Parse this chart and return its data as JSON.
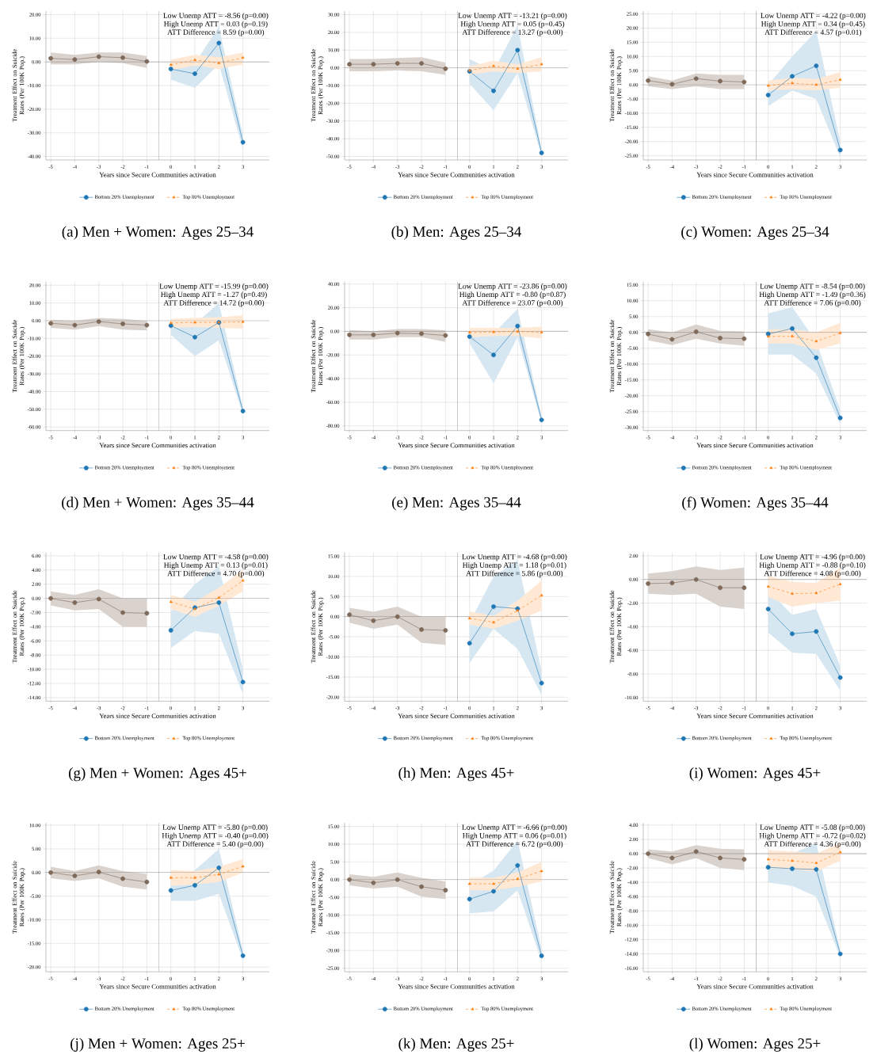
{
  "chart_data": [
    {
      "type": "line",
      "title": "(a) Men + Women: Ages 25–34",
      "xlabel": "Years since Secure Communities activation",
      "ylabel": "Treatment Effect on Suicide Rates (Per 100K Pop.)",
      "grid": true,
      "legend": "bottom",
      "xlim": [
        -5.2,
        4.1
      ],
      "xticks": [
        -5,
        -4,
        -3,
        -2,
        -1,
        0,
        1,
        2,
        3
      ],
      "ylim": [
        -41.5,
        21.5
      ],
      "yticks": [
        {
          "value": -40,
          "label": "-40.00"
        },
        {
          "value": -30,
          "label": "-30.00"
        },
        {
          "value": -20,
          "label": "-20.00"
        },
        {
          "value": -10,
          "label": "-10.00"
        },
        {
          "value": 0,
          "label": "0.00"
        },
        {
          "value": 10,
          "label": "10.00"
        },
        {
          "value": 20,
          "label": "20.00"
        }
      ],
      "annotations": [
        "Low Unemp ATT = -8.56 (p=0.00)",
        "High Unemp ATT = 0.03 (p=0.19)",
        "ATT Difference = 8.59 (p=0.00)"
      ],
      "ref_lines": [
        {
          "axis": "x",
          "value": -0.5
        },
        {
          "axis": "y",
          "value": 0
        }
      ],
      "series": [
        {
          "color": "#7f6a5a",
          "marker": "circle",
          "line_style": "solid",
          "x": [
            -5,
            -4,
            -3,
            -2,
            -1
          ],
          "values": [
            1.5,
            1.0,
            2.2,
            1.8,
            0.2
          ],
          "lower": [
            -1,
            -1,
            0,
            -0.5,
            -2.5
          ],
          "upper": [
            4,
            3,
            4,
            4,
            2.5
          ]
        },
        {
          "name": "Bottom 20% Unemployment",
          "color": "#1f77b4",
          "marker": "circle",
          "line_style": "solid",
          "x": [
            0,
            1,
            2,
            3
          ],
          "values": [
            -3,
            -5,
            8,
            -34
          ],
          "lower": [
            -7.5,
            -11,
            -1,
            -37
          ],
          "upper": [
            1,
            -0.5,
            15,
            -31
          ]
        },
        {
          "name": "Top 80% Unemployment",
          "color": "#ff7f0e",
          "marker": "triangle",
          "line_style": "dashed",
          "x": [
            0,
            1,
            2,
            3
          ],
          "values": [
            -1.2,
            0.8,
            -0.5,
            1.8
          ],
          "lower": [
            -3.5,
            -1.5,
            -3,
            -1
          ],
          "upper": [
            1,
            3,
            2,
            4
          ]
        }
      ]
    },
    {
      "type": "line",
      "title": "(b) Men: Ages 25–34",
      "xlabel": "Years since Secure Communities activation",
      "ylabel": "Treatment Effect on Suicide Rates (Per 100K Pop.)",
      "grid": true,
      "legend": "bottom",
      "xlim": [
        -5.2,
        4.1
      ],
      "xticks": [
        -5,
        -4,
        -3,
        -2,
        -1,
        0,
        1,
        2,
        3
      ],
      "ylim": [
        -52,
        32
      ],
      "yticks": [
        {
          "value": -50,
          "label": "-50.00"
        },
        {
          "value": -40,
          "label": "-40.00"
        },
        {
          "value": -30,
          "label": "-30.00"
        },
        {
          "value": -20,
          "label": "-20.00"
        },
        {
          "value": -10,
          "label": "-10.00"
        },
        {
          "value": 0,
          "label": "0.00"
        },
        {
          "value": 10,
          "label": "10.00"
        },
        {
          "value": 20,
          "label": "20.00"
        },
        {
          "value": 30,
          "label": "30.00"
        }
      ],
      "annotations": [
        "Low Unemp ATT = -13.21 (p=0.00)",
        "High Unemp ATT = 0.05 (p=0.45)",
        "ATT Difference = 13.27 (p=0.00)"
      ],
      "ref_lines": [
        {
          "axis": "x",
          "value": -0.5
        },
        {
          "axis": "y",
          "value": 0
        }
      ],
      "series": [
        {
          "color": "#7f6a5a",
          "marker": "circle",
          "line_style": "solid",
          "x": [
            -5,
            -4,
            -3,
            -2,
            -1
          ],
          "values": [
            2,
            2,
            2.5,
            2.5,
            -0.5
          ],
          "lower": [
            -2,
            -2,
            -1.5,
            -2,
            -4
          ],
          "upper": [
            5,
            5,
            5.5,
            6,
            3
          ]
        },
        {
          "name": "Bottom 20% Unemployment",
          "color": "#1f77b4",
          "marker": "circle",
          "line_style": "solid",
          "x": [
            0,
            1,
            2,
            3
          ],
          "values": [
            -2,
            -13,
            10,
            -48
          ],
          "lower": [
            -9,
            -24,
            -3,
            -50
          ],
          "upper": [
            5,
            -2,
            24,
            -46
          ]
        },
        {
          "name": "Top 80% Unemployment",
          "color": "#ff7f0e",
          "marker": "triangle",
          "line_style": "dashed",
          "x": [
            0,
            1,
            2,
            3
          ],
          "values": [
            -1.5,
            1,
            -0.5,
            2
          ],
          "lower": [
            -4,
            -2,
            -3,
            -2
          ],
          "upper": [
            1,
            4,
            2,
            6
          ]
        }
      ]
    },
    {
      "type": "line",
      "title": "(c) Women: Ages 25–34",
      "xlabel": "Years since Secure Communities activation",
      "ylabel": "Treatment Effect on Suicide Rates (Per 100K Pop.)",
      "grid": true,
      "legend": "bottom",
      "xlim": [
        -5.2,
        4.1
      ],
      "xticks": [
        -5,
        -4,
        -3,
        -2,
        -1,
        0,
        1,
        2,
        3
      ],
      "ylim": [
        -26.5,
        26
      ],
      "yticks": [
        {
          "value": -25,
          "label": "-25.00"
        },
        {
          "value": -20,
          "label": "-20.00"
        },
        {
          "value": -15,
          "label": "-15.00"
        },
        {
          "value": -10,
          "label": "-10.00"
        },
        {
          "value": -5,
          "label": "-5.00"
        },
        {
          "value": 0,
          "label": "0.00"
        },
        {
          "value": 5,
          "label": "5.00"
        },
        {
          "value": 10,
          "label": "10.00"
        },
        {
          "value": 15,
          "label": "15.00"
        },
        {
          "value": 20,
          "label": "20.00"
        },
        {
          "value": 25,
          "label": "25.00"
        }
      ],
      "annotations": [
        "Low Unemp ATT = -4.22 (p=0.00)",
        "High Unemp ATT = 0.34 (p=0.45)",
        "ATT Difference = 4.57 (p=0.01)"
      ],
      "ref_lines": [
        {
          "axis": "x",
          "value": -0.5
        },
        {
          "axis": "y",
          "value": 0
        }
      ],
      "series": [
        {
          "color": "#7f6a5a",
          "marker": "circle",
          "line_style": "solid",
          "x": [
            -5,
            -4,
            -3,
            -2,
            -1
          ],
          "values": [
            1.5,
            0.2,
            2.2,
            1.3,
            1
          ],
          "lower": [
            -0.5,
            -1.5,
            -0.5,
            -1.5,
            -1.5
          ],
          "upper": [
            3,
            1.5,
            4,
            3.5,
            3.5
          ]
        },
        {
          "name": "Bottom 20% Unemployment",
          "color": "#1f77b4",
          "marker": "circle",
          "line_style": "solid",
          "x": [
            0,
            1,
            2,
            3
          ],
          "values": [
            -3.6,
            3,
            6.7,
            -23
          ],
          "lower": [
            -7.5,
            -2,
            -5,
            -25.5
          ],
          "upper": [
            0,
            10,
            19,
            -20
          ]
        },
        {
          "name": "Top 80% Unemployment",
          "color": "#ff7f0e",
          "marker": "triangle",
          "line_style": "dashed",
          "x": [
            0,
            1,
            2,
            3
          ],
          "values": [
            -0.3,
            0.6,
            0,
            1.8
          ],
          "lower": [
            -2,
            -1.5,
            -2,
            -1
          ],
          "upper": [
            1.5,
            2.5,
            2,
            4.5
          ]
        }
      ]
    },
    {
      "type": "line",
      "title": "(d) Men + Women: Ages 35–44",
      "xlabel": "Years since Secure Communities activation",
      "ylabel": "Treatment Effect on Suicide Rates (Per 100K Pop.)",
      "grid": true,
      "legend": "bottom",
      "xlim": [
        -5.2,
        4.1
      ],
      "xticks": [
        -5,
        -4,
        -3,
        -2,
        -1,
        0,
        1,
        2,
        3
      ],
      "ylim": [
        -62,
        22
      ],
      "yticks": [
        {
          "value": -60,
          "label": "-60.00"
        },
        {
          "value": -50,
          "label": "-50.00"
        },
        {
          "value": -40,
          "label": "-40.00"
        },
        {
          "value": -30,
          "label": "-30.00"
        },
        {
          "value": -20,
          "label": "-20.00"
        },
        {
          "value": -10,
          "label": "-10.00"
        },
        {
          "value": 0,
          "label": "0.00"
        },
        {
          "value": 10,
          "label": "10.00"
        },
        {
          "value": 20,
          "label": "20.00"
        }
      ],
      "annotations": [
        "Low Unemp ATT = -15.99 (p=0.00)",
        "High Unemp ATT = -1.27 (p=0.49)",
        "ATT Difference = 14.72 (p=0.00)"
      ],
      "ref_lines": [
        {
          "axis": "x",
          "value": -0.5
        },
        {
          "axis": "y",
          "value": 0
        }
      ],
      "series": [
        {
          "color": "#7f6a5a",
          "marker": "circle",
          "line_style": "solid",
          "x": [
            -5,
            -4,
            -3,
            -2,
            -1
          ],
          "values": [
            -1.5,
            -2.5,
            -0.5,
            -1.8,
            -2.5
          ],
          "lower": [
            -4,
            -5,
            -3,
            -5,
            -5.5
          ],
          "upper": [
            0.5,
            0,
            1.5,
            1,
            0
          ]
        },
        {
          "name": "Bottom 20% Unemployment",
          "color": "#1f77b4",
          "marker": "circle",
          "line_style": "solid",
          "x": [
            0,
            1,
            2,
            3
          ],
          "values": [
            -2.8,
            -9.3,
            -1,
            -51
          ],
          "lower": [
            -8,
            -20,
            -11,
            -53
          ],
          "upper": [
            1,
            -2,
            10,
            -49
          ]
        },
        {
          "name": "Top 80% Unemployment",
          "color": "#ff7f0e",
          "marker": "triangle",
          "line_style": "dashed",
          "x": [
            0,
            1,
            2,
            3
          ],
          "values": [
            -1.3,
            -1,
            -1,
            -0.6
          ],
          "lower": [
            -4,
            -3.5,
            -4,
            -4.5
          ],
          "upper": [
            1,
            1.5,
            2,
            3
          ]
        }
      ]
    },
    {
      "type": "line",
      "title": "(e) Men: Ages 35–44",
      "xlabel": "Years since Secure Communities activation",
      "ylabel": "Treatment Effect on Suicide Rates (Per 100K Pop.)",
      "grid": true,
      "legend": "bottom",
      "xlim": [
        -5.2,
        4.1
      ],
      "xticks": [
        -5,
        -4,
        -3,
        -2,
        -1,
        0,
        1,
        2,
        3
      ],
      "ylim": [
        -84,
        42
      ],
      "yticks": [
        {
          "value": -80,
          "label": "-80.00"
        },
        {
          "value": -60,
          "label": "-60.00"
        },
        {
          "value": -40,
          "label": "-40.00"
        },
        {
          "value": -20,
          "label": "-20.00"
        },
        {
          "value": 0,
          "label": "0.00"
        },
        {
          "value": 20,
          "label": "20.00"
        },
        {
          "value": 40,
          "label": "40.00"
        }
      ],
      "annotations": [
        "Low Unemp ATT = -23.86 (p=0.00)",
        "High Unemp ATT = -0.80 (p=0.87)",
        "ATT Difference = 23.07 (p=0.00)"
      ],
      "ref_lines": [
        {
          "axis": "x",
          "value": -0.5
        },
        {
          "axis": "y",
          "value": 0
        }
      ],
      "series": [
        {
          "color": "#7f6a5a",
          "marker": "circle",
          "line_style": "solid",
          "x": [
            -5,
            -4,
            -3,
            -2,
            -1
          ],
          "values": [
            -3,
            -3,
            -1.5,
            -2,
            -3.5
          ],
          "lower": [
            -7,
            -7,
            -5,
            -5,
            -9
          ],
          "upper": [
            1,
            0,
            2,
            2,
            1
          ]
        },
        {
          "name": "Bottom 20% Unemployment",
          "color": "#1f77b4",
          "marker": "circle",
          "line_style": "solid",
          "x": [
            0,
            1,
            2,
            3
          ],
          "values": [
            -4.5,
            -20,
            4.5,
            -75
          ],
          "lower": [
            -10,
            -44,
            -5,
            -78
          ],
          "upper": [
            1,
            -2,
            19,
            -72
          ]
        },
        {
          "name": "Top 80% Unemployment",
          "color": "#ff7f0e",
          "marker": "triangle",
          "line_style": "dashed",
          "x": [
            0,
            1,
            2,
            3
          ],
          "values": [
            -1,
            -0.6,
            -0.2,
            -0.8
          ],
          "lower": [
            -5,
            -4,
            -4,
            -6
          ],
          "upper": [
            3,
            3,
            3,
            4
          ]
        }
      ]
    },
    {
      "type": "line",
      "title": "(f) Women: Ages 35–44",
      "xlabel": "Years since Secure Communities activation",
      "ylabel": "Treatment Effect on Suicide Rates (Per 100K Pop.)",
      "grid": true,
      "legend": "bottom",
      "xlim": [
        -5.2,
        4.1
      ],
      "xticks": [
        -5,
        -4,
        -3,
        -2,
        -1,
        0,
        1,
        2,
        3
      ],
      "ylim": [
        -31,
        16
      ],
      "yticks": [
        {
          "value": -30,
          "label": "-30.00"
        },
        {
          "value": -25,
          "label": "-25.00"
        },
        {
          "value": -20,
          "label": "-20.00"
        },
        {
          "value": -15,
          "label": "-15.00"
        },
        {
          "value": -10,
          "label": "-10.00"
        },
        {
          "value": -5,
          "label": "-5.00"
        },
        {
          "value": 0,
          "label": "0.00"
        },
        {
          "value": 5,
          "label": "5.00"
        },
        {
          "value": 10,
          "label": "10.00"
        },
        {
          "value": 15,
          "label": "15.00"
        }
      ],
      "annotations": [
        "Low Unemp ATT = -8.54 (p=0.00)",
        "High Unemp ATT = -1.49 (p=0.36)",
        "ATT Difference = 7.06 (p=0.00)"
      ],
      "ref_lines": [
        {
          "axis": "x",
          "value": -0.5
        },
        {
          "axis": "y",
          "value": 0
        }
      ],
      "series": [
        {
          "color": "#7f6a5a",
          "marker": "circle",
          "line_style": "solid",
          "x": [
            -5,
            -4,
            -3,
            -2,
            -1
          ],
          "values": [
            -0.5,
            -2.2,
            0.2,
            -1.8,
            -2
          ],
          "lower": [
            -2.5,
            -4,
            -2,
            -3.5,
            -4.2
          ],
          "upper": [
            1,
            0,
            2.5,
            0.5,
            0.3
          ]
        },
        {
          "name": "Bottom 20% Unemployment",
          "color": "#1f77b4",
          "marker": "circle",
          "line_style": "solid",
          "x": [
            0,
            1,
            2,
            3
          ],
          "values": [
            -0.5,
            1.2,
            -8,
            -27
          ],
          "lower": [
            -7,
            -7,
            -13,
            -29
          ],
          "upper": [
            6,
            8,
            -3,
            -24.5
          ]
        },
        {
          "name": "Top 80% Unemployment",
          "color": "#ff7f0e",
          "marker": "triangle",
          "line_style": "dashed",
          "x": [
            0,
            1,
            2,
            3
          ],
          "values": [
            -1.3,
            -1.2,
            -2.8,
            -0.2
          ],
          "lower": [
            -3.5,
            -3.5,
            -5.5,
            -3.5
          ],
          "upper": [
            1,
            1,
            0,
            3
          ]
        }
      ]
    },
    {
      "type": "line",
      "title": "(g) Men + Women: Ages 45+",
      "xlabel": "Years since Secure Communities activation",
      "ylabel": "Treatment Effect on Suicide Rates (Per 100K Pop.)",
      "grid": true,
      "legend": "bottom",
      "xlim": [
        -5.2,
        4.1
      ],
      "xticks": [
        -5,
        -4,
        -3,
        -2,
        -1,
        0,
        1,
        2,
        3
      ],
      "ylim": [
        -14.5,
        6.5
      ],
      "yticks": [
        {
          "value": -14,
          "label": "-14.00"
        },
        {
          "value": -12,
          "label": "-12.00"
        },
        {
          "value": -10,
          "label": "-10.00"
        },
        {
          "value": -8,
          "label": "-8.00"
        },
        {
          "value": -6,
          "label": "-6.00"
        },
        {
          "value": -4,
          "label": "-4.00"
        },
        {
          "value": -2,
          "label": "-2.00"
        },
        {
          "value": 0,
          "label": "0.00"
        },
        {
          "value": 2,
          "label": "2.00"
        },
        {
          "value": 4,
          "label": "4.00"
        },
        {
          "value": 6,
          "label": "6.00"
        }
      ],
      "annotations": [
        "Low Unemp ATT = -4.58 (p=0.00)",
        "High Unemp ATT = 0.13 (p=0.01)",
        "ATT Difference = 4.70 (p=0.00)"
      ],
      "ref_lines": [
        {
          "axis": "x",
          "value": -0.5
        },
        {
          "axis": "y",
          "value": 0
        }
      ],
      "series": [
        {
          "color": "#7f6a5a",
          "marker": "circle",
          "line_style": "solid",
          "x": [
            -5,
            -4,
            -3,
            -2,
            -1
          ],
          "values": [
            0,
            -0.6,
            -0.1,
            -2,
            -2.1
          ],
          "lower": [
            -1,
            -1.7,
            -1.5,
            -4,
            -4
          ],
          "upper": [
            1,
            0.5,
            1.3,
            0,
            0
          ]
        },
        {
          "name": "Bottom 20% Unemployment",
          "color": "#1f77b4",
          "marker": "circle",
          "line_style": "solid",
          "x": [
            0,
            1,
            2,
            3
          ],
          "values": [
            -4.5,
            -1.3,
            -0.6,
            -11.8
          ],
          "lower": [
            -7,
            -4.6,
            -5,
            -13.5
          ],
          "upper": [
            -1.8,
            2,
            4.5,
            -10
          ]
        },
        {
          "name": "Top 80% Unemployment",
          "color": "#ff7f0e",
          "marker": "triangle",
          "line_style": "dashed",
          "x": [
            0,
            1,
            2,
            3
          ],
          "values": [
            -0.5,
            -1.5,
            0.1,
            2.5
          ],
          "lower": [
            -1.5,
            -2.6,
            -1,
            1
          ],
          "upper": [
            0.5,
            -0.5,
            1.5,
            4
          ]
        }
      ]
    },
    {
      "type": "line",
      "title": "(h) Men: Ages 45+",
      "xlabel": "Years since Secure Communities activation",
      "ylabel": "Treatment Effect on Suicide Rates (Per 100K Pop.)",
      "grid": true,
      "legend": "bottom",
      "xlim": [
        -5.2,
        4.1
      ],
      "xticks": [
        -5,
        -4,
        -3,
        -2,
        -1,
        0,
        1,
        2,
        3
      ],
      "ylim": [
        -21,
        16
      ],
      "yticks": [
        {
          "value": -20,
          "label": "-20.00"
        },
        {
          "value": -15,
          "label": "-15.00"
        },
        {
          "value": -10,
          "label": "-10.00"
        },
        {
          "value": -5,
          "label": "-5.00"
        },
        {
          "value": 0,
          "label": "0.00"
        },
        {
          "value": 5,
          "label": "5.00"
        },
        {
          "value": 10,
          "label": "10.00"
        },
        {
          "value": 15,
          "label": "15.00"
        }
      ],
      "annotations": [
        "Low Unemp ATT = -4.68 (p=0.00)",
        "High Unemp ATT = 1.18 (p=0.01)",
        "ATT Difference = 5.86 (p=0.00)"
      ],
      "ref_lines": [
        {
          "axis": "x",
          "value": -0.5
        },
        {
          "axis": "y",
          "value": 0
        }
      ],
      "series": [
        {
          "color": "#7f6a5a",
          "marker": "circle",
          "line_style": "solid",
          "x": [
            -5,
            -4,
            -3,
            -2,
            -1
          ],
          "values": [
            0.5,
            -1,
            0,
            -3.2,
            -3.4
          ],
          "lower": [
            -1.5,
            -3,
            -2,
            -6.5,
            -7
          ],
          "upper": [
            2.2,
            1.2,
            2.5,
            0,
            0
          ]
        },
        {
          "name": "Bottom 20% Unemployment",
          "color": "#1f77b4",
          "marker": "circle",
          "line_style": "solid",
          "x": [
            0,
            1,
            2,
            3
          ],
          "values": [
            -6.6,
            2.5,
            2,
            -16.5
          ],
          "lower": [
            -11.5,
            -3,
            -8,
            -19.5
          ],
          "upper": [
            -1.5,
            10,
            14,
            -13.5
          ]
        },
        {
          "name": "Top 80% Unemployment",
          "color": "#ff7f0e",
          "marker": "triangle",
          "line_style": "dashed",
          "x": [
            0,
            1,
            2,
            3
          ],
          "values": [
            -0.4,
            -1.4,
            1.5,
            5.3
          ],
          "lower": [
            -2,
            -3,
            -1,
            1.5
          ],
          "upper": [
            1.3,
            0.2,
            4,
            9
          ]
        }
      ]
    },
    {
      "type": "line",
      "title": "(i) Women: Ages 45+",
      "xlabel": "Years since Secure Communities activation",
      "ylabel": "Treatment Effect on Suicide Rates (Per 100K Pop.)",
      "grid": true,
      "legend": "bottom",
      "xlim": [
        -5.2,
        4.1
      ],
      "xticks": [
        -5,
        -4,
        -3,
        -2,
        -1,
        0,
        1,
        2,
        3
      ],
      "ylim": [
        -10.3,
        2.3
      ],
      "yticks": [
        {
          "value": -10,
          "label": "-10.00"
        },
        {
          "value": -8,
          "label": "-8.00"
        },
        {
          "value": -6,
          "label": "-6.00"
        },
        {
          "value": -4,
          "label": "-4.00"
        },
        {
          "value": -2,
          "label": "-2.00"
        },
        {
          "value": 0,
          "label": "0.00"
        },
        {
          "value": 2,
          "label": "2.00"
        }
      ],
      "annotations": [
        "Low Unemp ATT = -4.96 (p=0.00)",
        "High Unemp ATT = -0.88 (p=0.10)",
        "ATT Difference = 4.08 (p=0.00)"
      ],
      "ref_lines": [
        {
          "axis": "x",
          "value": -0.5
        },
        {
          "axis": "y",
          "value": 0
        }
      ],
      "series": [
        {
          "color": "#7f6a5a",
          "marker": "circle",
          "line_style": "solid",
          "x": [
            -5,
            -4,
            -3,
            -2,
            -1
          ],
          "values": [
            -0.35,
            -0.3,
            0,
            -0.7,
            -0.7
          ],
          "lower": [
            -1.2,
            -1.3,
            -1.2,
            -2.3,
            -2.5
          ],
          "upper": [
            0.5,
            0.7,
            1.1,
            0.8,
            1
          ]
        },
        {
          "name": "Bottom 20% Unemployment",
          "color": "#1f77b4",
          "marker": "circle",
          "line_style": "solid",
          "x": [
            0,
            1,
            2,
            3
          ],
          "values": [
            -2.5,
            -4.6,
            -4.4,
            -8.3
          ],
          "lower": [
            -4.5,
            -6.2,
            -6.3,
            -9.4
          ],
          "upper": [
            -0.9,
            -3,
            -2.5,
            -7.3
          ]
        },
        {
          "name": "Top 80% Unemployment",
          "color": "#ff7f0e",
          "marker": "triangle",
          "line_style": "dashed",
          "x": [
            0,
            1,
            2,
            3
          ],
          "values": [
            -0.6,
            -1.2,
            -1.15,
            -0.4
          ],
          "lower": [
            -1.5,
            -2.3,
            -2,
            -1.8
          ],
          "upper": [
            0.3,
            -0.2,
            -0.3,
            1
          ]
        }
      ]
    },
    {
      "type": "line",
      "title": "(j) Men + Women: Ages 25+",
      "xlabel": "Years since Secure Communities activation",
      "ylabel": "Treatment Effect on Suicide Rates (Per 100K Pop.)",
      "grid": true,
      "legend": "bottom",
      "xlim": [
        -5.2,
        4.1
      ],
      "xticks": [
        -5,
        -4,
        -3,
        -2,
        -1,
        0,
        1,
        2,
        3
      ],
      "ylim": [
        -21,
        10.5
      ],
      "yticks": [
        {
          "value": -20,
          "label": "-20.00"
        },
        {
          "value": -15,
          "label": "-15.00"
        },
        {
          "value": -10,
          "label": "-10.00"
        },
        {
          "value": -5,
          "label": "-5.00"
        },
        {
          "value": 0,
          "label": "0.00"
        },
        {
          "value": 5,
          "label": "5.00"
        },
        {
          "value": 10,
          "label": "10.00"
        }
      ],
      "annotations": [
        "Low Unemp ATT = -5.80 (p=0.00)",
        "High Unemp ATT = -0.40 (p=0.00)",
        "ATT Difference = 5.40 (p=0.00)"
      ],
      "ref_lines": [
        {
          "axis": "x",
          "value": -0.5
        },
        {
          "axis": "y",
          "value": 0
        }
      ],
      "series": [
        {
          "color": "#7f6a5a",
          "marker": "circle",
          "line_style": "solid",
          "x": [
            -5,
            -4,
            -3,
            -2,
            -1
          ],
          "values": [
            0,
            -0.7,
            0.1,
            -1.3,
            -2
          ],
          "lower": [
            -1.2,
            -1.8,
            -1.2,
            -3,
            -3.6
          ],
          "upper": [
            1.2,
            0.3,
            1.5,
            0.3,
            -0.3
          ]
        },
        {
          "name": "Bottom 20% Unemployment",
          "color": "#1f77b4",
          "marker": "circle",
          "line_style": "solid",
          "x": [
            0,
            1,
            2,
            3
          ],
          "values": [
            -3.8,
            -2.7,
            1,
            -17.6
          ],
          "lower": [
            -6,
            -6,
            -4.5,
            -18.5
          ],
          "upper": [
            -1.7,
            0.5,
            5,
            -16.5
          ]
        },
        {
          "name": "Top 80% Unemployment",
          "color": "#ff7f0e",
          "marker": "triangle",
          "line_style": "dashed",
          "x": [
            0,
            1,
            2,
            3
          ],
          "values": [
            -1.1,
            -1.1,
            -0.4,
            1.3
          ],
          "lower": [
            -2.8,
            -2.5,
            -2,
            0
          ],
          "upper": [
            0.5,
            0.3,
            1.2,
            2.8
          ]
        }
      ]
    },
    {
      "type": "line",
      "title": "(k) Men: Ages 25+",
      "xlabel": "Years since Secure Communities activation",
      "ylabel": "Treatment Effect on Suicide Rates (Per 100K Pop.)",
      "grid": true,
      "legend": "bottom",
      "xlim": [
        -5.2,
        4.1
      ],
      "xticks": [
        -5,
        -4,
        -3,
        -2,
        -1,
        0,
        1,
        2,
        3
      ],
      "ylim": [
        -26,
        16
      ],
      "yticks": [
        {
          "value": -25,
          "label": "-25.00"
        },
        {
          "value": -20,
          "label": "-20.00"
        },
        {
          "value": -15,
          "label": "-15.00"
        },
        {
          "value": -10,
          "label": "-10.00"
        },
        {
          "value": -5,
          "label": "-5.00"
        },
        {
          "value": 0,
          "label": "0.00"
        },
        {
          "value": 5,
          "label": "5.00"
        },
        {
          "value": 10,
          "label": "10.00"
        },
        {
          "value": 15,
          "label": "15.00"
        }
      ],
      "annotations": [
        "Low Unemp ATT = -6.66 (p=0.00)",
        "High Unemp ATT = 0.06 (p=0.01)",
        "ATT Difference = 6.72 (p=0.00)"
      ],
      "ref_lines": [
        {
          "axis": "x",
          "value": -0.5
        },
        {
          "axis": "y",
          "value": 0
        }
      ],
      "series": [
        {
          "color": "#7f6a5a",
          "marker": "circle",
          "line_style": "solid",
          "x": [
            -5,
            -4,
            -3,
            -2,
            -1
          ],
          "values": [
            0,
            -0.9,
            0,
            -2,
            -3
          ],
          "lower": [
            -1.6,
            -2.5,
            -2,
            -4.8,
            -5.5
          ],
          "upper": [
            1.5,
            0.8,
            2,
            0.5,
            -0.5
          ]
        },
        {
          "name": "Bottom 20% Unemployment",
          "color": "#1f77b4",
          "marker": "circle",
          "line_style": "solid",
          "x": [
            0,
            1,
            2,
            3
          ],
          "values": [
            -5.5,
            -3.3,
            4,
            -21.5
          ],
          "lower": [
            -9.5,
            -9,
            -3,
            -23
          ],
          "upper": [
            -1.5,
            2.5,
            11,
            -19.5
          ]
        },
        {
          "name": "Top 80% Unemployment",
          "color": "#ff7f0e",
          "marker": "triangle",
          "line_style": "dashed",
          "x": [
            0,
            1,
            2,
            3
          ],
          "values": [
            -1.2,
            -1.2,
            0.2,
            2.4
          ],
          "lower": [
            -3,
            -3,
            -2,
            -0.5
          ],
          "upper": [
            0.5,
            0.5,
            2,
            5
          ]
        }
      ]
    },
    {
      "type": "line",
      "title": "(l) Women: Ages 25+",
      "xlabel": "Years since Secure Communities activation",
      "ylabel": "Treatment Effect on Suicide Rates (Per 100K Pop.)",
      "grid": true,
      "legend": "bottom",
      "xlim": [
        -5.2,
        4.1
      ],
      "xticks": [
        -5,
        -4,
        -3,
        -2,
        -1,
        0,
        1,
        2,
        3
      ],
      "ylim": [
        -16.5,
        4.3
      ],
      "yticks": [
        {
          "value": -16,
          "label": "-16.00"
        },
        {
          "value": -14,
          "label": "-14.00"
        },
        {
          "value": -12,
          "label": "-12.00"
        },
        {
          "value": -10,
          "label": "-10.00"
        },
        {
          "value": -8,
          "label": "-8.00"
        },
        {
          "value": -6,
          "label": "-6.00"
        },
        {
          "value": -4,
          "label": "-4.00"
        },
        {
          "value": -2,
          "label": "-2.00"
        },
        {
          "value": 0,
          "label": "0.00"
        },
        {
          "value": 2,
          "label": "2.00"
        },
        {
          "value": 4,
          "label": "4.00"
        }
      ],
      "annotations": [
        "Low Unemp ATT = -5.08 (p=0.00)",
        "High Unemp ATT = -0.72 (p=0.02)",
        "ATT Difference = 4.36 (p=0.00)"
      ],
      "ref_lines": [
        {
          "axis": "x",
          "value": -0.5
        },
        {
          "axis": "y",
          "value": 0
        }
      ],
      "series": [
        {
          "color": "#7f6a5a",
          "marker": "circle",
          "line_style": "solid",
          "x": [
            -5,
            -4,
            -3,
            -2,
            -1
          ],
          "values": [
            0,
            -0.6,
            0.3,
            -0.6,
            -0.8
          ],
          "lower": [
            -0.6,
            -1.5,
            -0.6,
            -2,
            -2.3
          ],
          "upper": [
            0.6,
            0.3,
            1.2,
            0.7,
            0.6
          ]
        },
        {
          "name": "Bottom 20% Unemployment",
          "color": "#1f77b4",
          "marker": "circle",
          "line_style": "solid",
          "x": [
            0,
            1,
            2,
            3
          ],
          "values": [
            -1.9,
            -2.1,
            -2.2,
            -14
          ],
          "lower": [
            -4,
            -4.5,
            -6,
            -14.5
          ],
          "upper": [
            0.3,
            0,
            1.5,
            -13.5
          ]
        },
        {
          "name": "Top 80% Unemployment",
          "color": "#ff7f0e",
          "marker": "triangle",
          "line_style": "dashed",
          "x": [
            0,
            1,
            2,
            3
          ],
          "values": [
            -0.8,
            -1,
            -1.3,
            0.2
          ],
          "lower": [
            -2,
            -2.2,
            -2.5,
            -1
          ],
          "upper": [
            0.5,
            0.3,
            0,
            1.5
          ]
        }
      ]
    }
  ]
}
